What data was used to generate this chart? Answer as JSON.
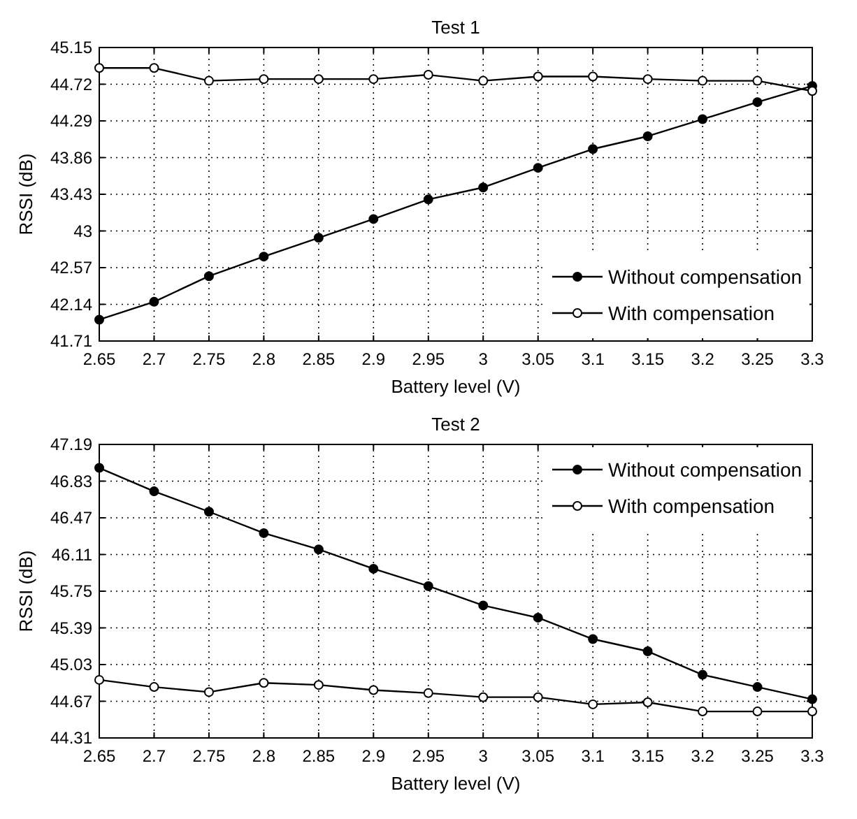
{
  "chart_data": [
    {
      "type": "line",
      "title": "Test 1",
      "xlabel": "Battery level (V)",
      "ylabel": "RSSI (dB)",
      "x": [
        2.65,
        2.7,
        2.75,
        2.8,
        2.85,
        2.9,
        2.95,
        3,
        3.05,
        3.1,
        3.15,
        3.2,
        3.25,
        3.3
      ],
      "series": [
        {
          "name": "Without compensation",
          "color": "#000000",
          "marker": "circle",
          "values": [
            41.96,
            42.17,
            42.47,
            42.7,
            42.92,
            43.14,
            43.37,
            43.51,
            43.74,
            43.96,
            44.11,
            44.31,
            44.51,
            44.7
          ]
        },
        {
          "name": "With compensation",
          "color": "#000000",
          "marker": "circle",
          "values": [
            44.91,
            44.91,
            44.76,
            44.78,
            44.78,
            44.78,
            44.83,
            44.76,
            44.81,
            44.81,
            44.78,
            44.76,
            44.76,
            44.64
          ]
        }
      ],
      "xlim": [
        2.65,
        3.3
      ],
      "xticks": [
        2.65,
        2.7,
        2.75,
        2.8,
        2.85,
        2.9,
        2.95,
        3,
        3.05,
        3.1,
        3.15,
        3.2,
        3.25,
        3.3
      ],
      "ylim": [
        41.71,
        45.15
      ],
      "yticks": [
        41.71,
        42.14,
        42.57,
        43,
        43.43,
        43.86,
        44.29,
        44.72,
        45.15
      ],
      "grid": true,
      "legend": "bottom right"
    },
    {
      "type": "line",
      "title": "Test 2",
      "xlabel": "Battery level (V)",
      "ylabel": "RSSI (dB)",
      "x": [
        2.65,
        2.7,
        2.75,
        2.8,
        2.85,
        2.9,
        2.95,
        3,
        3.05,
        3.1,
        3.15,
        3.2,
        3.25,
        3.3
      ],
      "series": [
        {
          "name": "Without compensation",
          "color": "#000000",
          "marker": "circle",
          "values": [
            46.96,
            46.73,
            46.53,
            46.32,
            46.16,
            45.97,
            45.8,
            45.61,
            45.49,
            45.28,
            45.16,
            44.93,
            44.81,
            44.69
          ]
        },
        {
          "name": "With compensation",
          "color": "#000000",
          "marker": "circle",
          "values": [
            44.88,
            44.81,
            44.76,
            44.85,
            44.83,
            44.78,
            44.75,
            44.71,
            44.71,
            44.64,
            44.66,
            44.57,
            44.57,
            44.57
          ]
        }
      ],
      "xlim": [
        2.65,
        3.3
      ],
      "xticks": [
        2.65,
        2.7,
        2.75,
        2.8,
        2.85,
        2.9,
        2.95,
        3,
        3.05,
        3.1,
        3.15,
        3.2,
        3.25,
        3.3
      ],
      "ylim": [
        44.31,
        47.19
      ],
      "yticks": [
        44.31,
        44.67,
        45.03,
        45.39,
        45.75,
        46.11,
        46.47,
        46.83,
        47.19
      ],
      "grid": true,
      "legend": "top right"
    }
  ]
}
